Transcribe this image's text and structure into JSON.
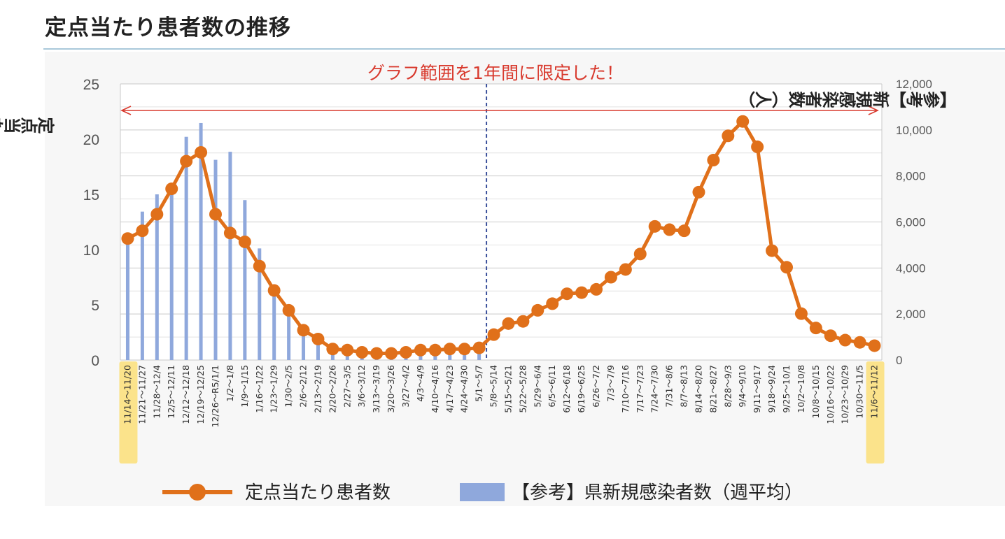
{
  "title": "定点当たり患者数の推移",
  "chart_data": {
    "type": "bar+line",
    "annotation": "グラフ範囲を1年間に限定した！",
    "y_left": {
      "label": "定点当たり患者数（人）",
      "ticks": [
        "0",
        "5",
        "10",
        "15",
        "20",
        "25"
      ],
      "range": [
        0,
        25
      ]
    },
    "y_right": {
      "label": "【参考】新規感染者数（人）",
      "ticks": [
        "0",
        "2,000",
        "4,000",
        "6,000",
        "8,000",
        "10,000",
        "12,000"
      ],
      "range": [
        0,
        12000
      ]
    },
    "categories": [
      "11/14〜11/20",
      "11/21〜11/27",
      "11/28〜12/4",
      "12/5〜12/11",
      "12/12〜12/18",
      "12/19〜12/25",
      "12/26〜R5/1/1",
      "1/2〜1/8",
      "1/9〜1/15",
      "1/16〜1/22",
      "1/23〜1/29",
      "1/30〜2/5",
      "2/6〜2/12",
      "2/13〜2/19",
      "2/20〜2/26",
      "2/27〜3/5",
      "3/6〜3/12",
      "3/13〜3/19",
      "3/20〜3/26",
      "3/27〜4/2",
      "4/3〜4/9",
      "4/10〜4/16",
      "4/17〜4/23",
      "4/24〜4/30",
      "5/1〜5/7",
      "5/8〜5/14",
      "5/15〜5/21",
      "5/22〜5/28",
      "5/29〜6/4",
      "6/5〜6/11",
      "6/12〜6/18",
      "6/19〜6/25",
      "6/26〜7/2",
      "7/3〜7/9",
      "7/10〜7/16",
      "7/17〜7/23",
      "7/24〜7/30",
      "7/31〜8/6",
      "8/7〜8/13",
      "8/14〜8/20",
      "8/21〜8/27",
      "8/28〜9/3",
      "9/4〜9/10",
      "9/11〜9/17",
      "9/18〜9/24",
      "9/25〜10/1",
      "10/2〜10/8",
      "10/8〜10/15",
      "10/16〜10/22",
      "10/23〜10/29",
      "10/30〜11/5",
      "11/6〜11/12"
    ],
    "highlighted_categories": [
      "11/14〜11/20",
      "11/6〜11/12"
    ],
    "divider_after_category": "5/1〜5/7",
    "series": [
      {
        "name": "定点当たり患者数",
        "type": "line",
        "axis": "left",
        "color": "#e0701a",
        "values": [
          11.0,
          11.7,
          13.2,
          15.5,
          18.0,
          18.8,
          13.2,
          11.5,
          10.7,
          8.5,
          6.3,
          4.5,
          2.7,
          1.9,
          1.0,
          0.9,
          0.7,
          0.6,
          0.6,
          0.7,
          0.9,
          0.9,
          1.0,
          1.0,
          1.1,
          2.3,
          3.3,
          3.5,
          4.5,
          5.1,
          6.0,
          6.1,
          6.4,
          7.5,
          8.2,
          9.6,
          12.1,
          11.8,
          11.7,
          15.2,
          18.1,
          20.3,
          21.6,
          19.3,
          9.9,
          8.4,
          4.2,
          2.9,
          2.2,
          1.8,
          1.6,
          1.3
        ]
      },
      {
        "name": "【参考】県新規感染者数（週平均）",
        "type": "bar",
        "axis": "right",
        "color": "#8fa8dc",
        "values": [
          5300,
          6450,
          7200,
          7450,
          9700,
          10300,
          8700,
          9050,
          6950,
          4850,
          3000,
          2050,
          1300,
          900,
          600,
          500,
          400,
          350,
          320,
          330,
          380,
          400,
          420,
          430,
          480,
          0,
          0,
          0,
          0,
          0,
          0,
          0,
          0,
          0,
          0,
          0,
          0,
          0,
          0,
          0,
          0,
          0,
          0,
          0,
          0,
          0,
          0,
          0,
          0,
          0,
          0,
          0
        ]
      }
    ],
    "legend_position": "bottom",
    "grid": true
  }
}
